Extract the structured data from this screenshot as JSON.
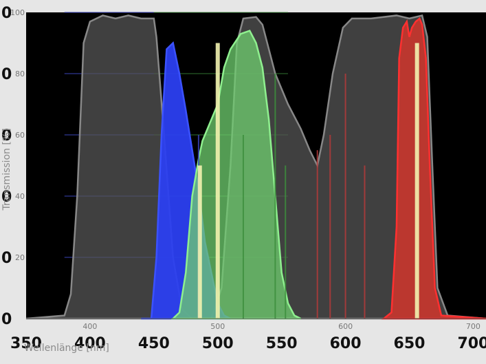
{
  "chart_data": {
    "type": "area",
    "xlabel": "Wellenlänge [nm]",
    "ylabel": "Transmission [%]",
    "xlim": [
      350,
      710
    ],
    "ylim": [
      0,
      100
    ],
    "x_ticks": [
      350,
      400,
      450,
      500,
      550,
      600,
      650,
      700
    ],
    "x_ticks_inner": [
      400,
      500,
      600,
      700
    ],
    "y_ticks_inner": [
      20,
      40,
      60,
      80,
      100
    ],
    "y_ticks_outer": [
      "0",
      "0",
      "0",
      "0",
      "0",
      "0"
    ],
    "grid": true,
    "legend": "none",
    "colors": {
      "background": "#000000",
      "frame": "#e6e6e6",
      "grey_filter": "#555555",
      "blue_filter": "#2b3ff0",
      "green_filter": "#6fcf6f",
      "red_filter": "#d9342b",
      "emission_line": "#f3f3b0",
      "grid_blue": "#3a44b8",
      "grid_green": "#3d8f3d",
      "grid_red": "#b23a3a"
    },
    "series": [
      {
        "color": "grey",
        "points": [
          [
            350,
            0
          ],
          [
            380,
            1
          ],
          [
            385,
            8
          ],
          [
            390,
            40
          ],
          [
            395,
            90
          ],
          [
            400,
            97
          ],
          [
            410,
            99
          ],
          [
            420,
            98
          ],
          [
            430,
            99
          ],
          [
            440,
            98
          ],
          [
            450,
            98
          ],
          [
            452,
            92
          ],
          [
            458,
            60
          ],
          [
            465,
            20
          ],
          [
            472,
            3
          ],
          [
            480,
            0
          ],
          [
            495,
            0
          ],
          [
            503,
            10
          ],
          [
            510,
            50
          ],
          [
            515,
            90
          ],
          [
            520,
            98
          ],
          [
            530,
            98.5
          ],
          [
            535,
            96
          ],
          [
            545,
            80
          ],
          [
            555,
            70
          ],
          [
            565,
            62
          ],
          [
            572,
            55
          ],
          [
            578,
            50
          ],
          [
            583,
            60
          ],
          [
            590,
            80
          ],
          [
            598,
            95
          ],
          [
            605,
            98
          ],
          [
            620,
            98
          ],
          [
            640,
            99
          ],
          [
            650,
            98
          ],
          [
            660,
            99
          ],
          [
            664,
            92
          ],
          [
            668,
            50
          ],
          [
            672,
            10
          ],
          [
            680,
            1
          ],
          [
            710,
            0
          ]
        ]
      },
      {
        "color": "blue",
        "points": [
          [
            440,
            0
          ],
          [
            448,
            0
          ],
          [
            452,
            20
          ],
          [
            456,
            60
          ],
          [
            460,
            88
          ],
          [
            465,
            90
          ],
          [
            470,
            80
          ],
          [
            475,
            68
          ],
          [
            480,
            55
          ],
          [
            485,
            42
          ],
          [
            490,
            25
          ],
          [
            495,
            15
          ],
          [
            500,
            5
          ],
          [
            505,
            1
          ],
          [
            510,
            0
          ]
        ]
      },
      {
        "color": "green",
        "points": [
          [
            465,
            0
          ],
          [
            470,
            2
          ],
          [
            475,
            15
          ],
          [
            480,
            40
          ],
          [
            485,
            52
          ],
          [
            488,
            58
          ],
          [
            495,
            65
          ],
          [
            500,
            70
          ],
          [
            505,
            82
          ],
          [
            510,
            88
          ],
          [
            518,
            93
          ],
          [
            525,
            94
          ],
          [
            530,
            90
          ],
          [
            535,
            82
          ],
          [
            540,
            65
          ],
          [
            545,
            40
          ],
          [
            550,
            15
          ],
          [
            555,
            5
          ],
          [
            560,
            1
          ],
          [
            565,
            0
          ]
        ]
      },
      {
        "color": "red",
        "points": [
          [
            630,
            0
          ],
          [
            636,
            2
          ],
          [
            640,
            30
          ],
          [
            642,
            85
          ],
          [
            645,
            95
          ],
          [
            648,
            97
          ],
          [
            650,
            92
          ],
          [
            652,
            95
          ],
          [
            655,
            97
          ],
          [
            658,
            98
          ],
          [
            660,
            96
          ],
          [
            663,
            85
          ],
          [
            666,
            50
          ],
          [
            670,
            10
          ],
          [
            675,
            1
          ],
          [
            710,
            0
          ]
        ]
      }
    ],
    "emission_lines": [
      {
        "x": 486,
        "height": 50
      },
      {
        "x": 500,
        "height": 90
      },
      {
        "x": 656,
        "height": 90
      }
    ],
    "grid_lines_vertical": [
      {
        "x": 485,
        "color": "blue",
        "height": 60
      },
      {
        "x": 500,
        "color": "green",
        "height": 80
      },
      {
        "x": 520,
        "color": "green",
        "height": 60
      },
      {
        "x": 545,
        "color": "green",
        "height": 80
      },
      {
        "x": 553,
        "color": "green",
        "height": 50
      },
      {
        "x": 578,
        "color": "red",
        "height": 55
      },
      {
        "x": 588,
        "color": "red",
        "height": 60
      },
      {
        "x": 600,
        "color": "red",
        "height": 80
      },
      {
        "x": 615,
        "color": "red",
        "height": 50
      }
    ]
  }
}
